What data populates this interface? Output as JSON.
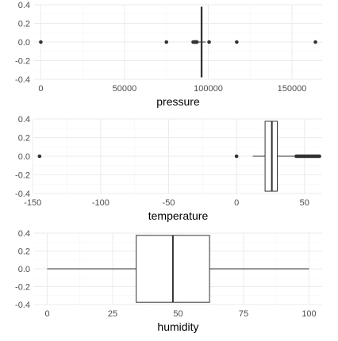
{
  "colors": {
    "background": "#ffffff",
    "grid_major": "#ebebeb",
    "grid_minor": "#f5f5f5",
    "box_line": "#333333",
    "box_fill": "#ffffff",
    "outlier": "#333333",
    "text": "#4d4d4d",
    "title": "#000000"
  },
  "chart_data": [
    {
      "type": "boxplot",
      "orientation": "horizontal",
      "xlabel": "pressure",
      "ylabel": "",
      "xlim": [
        -4000,
        168000
      ],
      "ylim": [
        -0.4,
        0.4
      ],
      "x_ticks": [
        0,
        50000,
        100000,
        150000
      ],
      "x_tick_labels": [
        "0",
        "50000",
        "100000",
        "150000"
      ],
      "y_ticks": [
        0.4,
        0.2,
        0.0,
        -0.2,
        -0.4
      ],
      "y_tick_labels": [
        "0.4",
        "0.2",
        "0.0",
        "-0.2",
        "-0.4"
      ],
      "grid": true,
      "box": {
        "whisker_low": 93500,
        "q1": 95700,
        "median": 96000,
        "q3": 96300,
        "whisker_high": 98500,
        "width": 0.75
      },
      "outliers": [
        0,
        75000,
        91000,
        91500,
        92000,
        92300,
        92600,
        92900,
        93200,
        100500,
        117000,
        164000
      ]
    },
    {
      "type": "boxplot",
      "orientation": "horizontal",
      "xlabel": "temperature",
      "ylabel": "",
      "xlim": [
        -149,
        63
      ],
      "ylim": [
        -0.4,
        0.4
      ],
      "x_ticks": [
        -150,
        -100,
        -50,
        0,
        50
      ],
      "x_tick_labels": [
        "-150",
        "-100",
        "-50",
        "0",
        "50"
      ],
      "y_ticks": [
        0.4,
        0.2,
        0.0,
        -0.2,
        -0.4
      ],
      "y_tick_labels": [
        "0.4",
        "0.2",
        "0.0",
        "-0.2",
        "-0.4"
      ],
      "grid": true,
      "box": {
        "whisker_low": 12,
        "q1": 21,
        "median": 26,
        "q3": 30,
        "whisker_high": 43,
        "width": 0.75
      },
      "outliers": [
        -145,
        0,
        44,
        45,
        46,
        47,
        48,
        49,
        50,
        51,
        52,
        53,
        54,
        55,
        56,
        57,
        58,
        59,
        60,
        61
      ]
    },
    {
      "type": "boxplot",
      "orientation": "horizontal",
      "xlabel": "humidity",
      "ylabel": "",
      "xlim": [
        -5,
        105
      ],
      "ylim": [
        -0.4,
        0.4
      ],
      "x_ticks": [
        0,
        25,
        50,
        75,
        100
      ],
      "x_tick_labels": [
        "0",
        "25",
        "50",
        "75",
        "100"
      ],
      "y_ticks": [
        0.4,
        0.2,
        0.0,
        -0.2,
        -0.4
      ],
      "y_tick_labels": [
        "0.4",
        "0.2",
        "0.0",
        "-0.2",
        "-0.4"
      ],
      "grid": true,
      "box": {
        "whisker_low": 0,
        "q1": 34,
        "median": 48,
        "q3": 62,
        "whisker_high": 100,
        "width": 0.75
      },
      "outliers": []
    }
  ]
}
